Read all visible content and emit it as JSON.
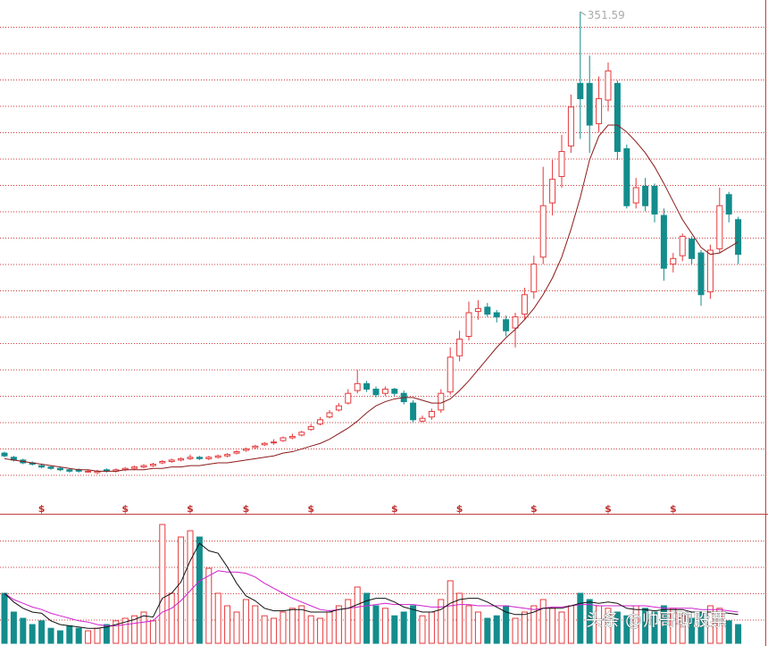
{
  "chart_data": {
    "type": "candlestick",
    "open": [
      34,
      31,
      29,
      27,
      25,
      24,
      23,
      22,
      22,
      21,
      20,
      22,
      21,
      22,
      23,
      24,
      25,
      27,
      28,
      29,
      30,
      31,
      30,
      31,
      32,
      34,
      36,
      38,
      40,
      42,
      43,
      45,
      47,
      51,
      55,
      60,
      65,
      70,
      79,
      84,
      80,
      77,
      80,
      77,
      70,
      57,
      60,
      65,
      78,
      104,
      118,
      136,
      139,
      135,
      130,
      124,
      134,
      150,
      175,
      214,
      233,
      255,
      300,
      300,
      271,
      288,
      300,
      253,
      214,
      226,
      226,
      205,
      170,
      176,
      188,
      178,
      150,
      181,
      220,
      202
    ],
    "high": [
      35,
      32,
      30,
      28,
      26,
      25,
      24,
      23,
      23,
      22,
      22,
      23,
      23,
      24,
      25,
      26,
      27,
      29,
      30,
      31,
      33,
      32,
      32,
      33,
      34,
      36,
      38,
      40,
      42,
      44,
      46,
      48,
      50,
      55,
      60,
      65,
      70,
      80,
      94,
      86,
      82,
      82,
      81,
      79,
      72,
      61,
      66,
      80,
      110,
      122,
      143,
      144,
      142,
      137,
      133,
      135,
      153,
      176,
      240,
      245,
      263,
      292,
      351.59,
      320,
      305,
      315,
      302,
      256,
      232,
      232,
      228,
      210,
      178,
      192,
      190,
      180,
      184,
      225,
      222,
      204
    ],
    "low": [
      31,
      28,
      26,
      25,
      23,
      22,
      21,
      20,
      20,
      20,
      19,
      20,
      20,
      21,
      22,
      23,
      24,
      26,
      27,
      28,
      29,
      29,
      29,
      30,
      31,
      33,
      35,
      37,
      39,
      40,
      42,
      44,
      46,
      50,
      54,
      59,
      64,
      69,
      77,
      78,
      74,
      75,
      75,
      69,
      56,
      56,
      58,
      63,
      76,
      100,
      115,
      130,
      132,
      128,
      118,
      110,
      130,
      145,
      170,
      205,
      225,
      250,
      260,
      250,
      265,
      280,
      245,
      210,
      210,
      208,
      200,
      158,
      164,
      172,
      170,
      140,
      145,
      178,
      200,
      170
    ],
    "close": [
      32,
      29,
      27,
      26,
      24,
      23,
      22,
      21,
      21,
      21,
      21,
      21,
      22,
      23,
      24,
      25,
      26,
      28,
      29,
      30,
      31,
      30,
      31,
      32,
      33,
      35,
      37,
      39,
      41,
      42,
      45,
      46,
      49,
      53,
      58,
      63,
      68,
      77,
      84,
      80,
      76,
      80,
      77,
      71,
      58,
      59,
      64,
      77,
      103,
      116,
      135,
      138,
      134,
      132,
      122,
      132,
      148,
      170,
      212,
      231,
      251,
      283,
      289,
      270,
      289,
      309,
      251,
      212,
      225,
      212,
      206,
      167,
      174,
      190,
      174,
      148,
      180,
      212,
      206,
      177
    ],
    "ma": [
      30,
      29,
      28,
      27,
      26,
      25,
      24,
      23,
      22,
      22,
      21,
      21,
      21,
      22,
      22,
      22,
      23,
      23,
      24,
      24,
      25,
      25,
      26,
      27,
      27,
      28,
      29,
      30,
      31,
      32,
      34,
      35,
      37,
      39,
      41,
      44,
      48,
      52,
      57,
      63,
      68,
      71,
      73,
      74,
      74,
      72,
      70,
      70,
      73,
      79,
      86,
      94,
      102,
      110,
      117,
      123,
      130,
      138,
      148,
      160,
      175,
      195,
      218,
      245,
      262,
      270,
      270,
      265,
      258,
      250,
      240,
      228,
      215,
      202,
      192,
      182,
      177,
      178,
      182,
      186
    ],
    "ylim": [
      0,
      360
    ],
    "volume": [
      40,
      25,
      20,
      15,
      18,
      12,
      10,
      14,
      12,
      10,
      12,
      15,
      18,
      20,
      22,
      25,
      18,
      95,
      40,
      85,
      90,
      85,
      60,
      40,
      30,
      25,
      35,
      30,
      22,
      20,
      25,
      28,
      30,
      22,
      20,
      25,
      30,
      35,
      45,
      40,
      30,
      28,
      22,
      25,
      30,
      22,
      25,
      35,
      50,
      40,
      30,
      25,
      20,
      22,
      30,
      20,
      25,
      30,
      35,
      28,
      25,
      30,
      40,
      35,
      30,
      28,
      25,
      22,
      30,
      28,
      25,
      30,
      28,
      22,
      20,
      25,
      30,
      28,
      18,
      15
    ],
    "volume_ma_short": [
      40,
      33,
      28,
      25,
      24,
      18,
      15,
      14,
      13,
      12,
      12,
      13,
      15,
      17,
      19,
      22,
      21,
      36,
      40,
      49,
      66,
      80,
      74,
      72,
      61,
      48,
      38,
      34,
      28,
      26,
      26,
      27,
      27,
      25,
      25,
      25,
      27,
      28,
      31,
      34,
      36,
      36,
      33,
      29,
      27,
      25,
      25,
      27,
      32,
      35,
      36,
      36,
      33,
      29,
      25,
      23,
      23,
      25,
      28,
      28,
      28,
      30,
      32,
      33,
      32,
      33,
      32,
      28,
      27,
      27,
      26,
      27,
      27,
      27,
      25,
      25,
      25,
      25,
      24,
      23
    ],
    "volume_ma_long": [
      40,
      35,
      32,
      29,
      27,
      24,
      22,
      20,
      18,
      17,
      15,
      14,
      14,
      15,
      16,
      17,
      18,
      25,
      28,
      34,
      42,
      50,
      54,
      58,
      57,
      57,
      56,
      53,
      48,
      44,
      40,
      36,
      33,
      30,
      27,
      26,
      27,
      28,
      29,
      30,
      31,
      32,
      31,
      31,
      31,
      30,
      29,
      29,
      30,
      31,
      31,
      30,
      30,
      30,
      30,
      29,
      28,
      27,
      28,
      29,
      29,
      30,
      31,
      31,
      30,
      30,
      30,
      30,
      30,
      30,
      29,
      28,
      28,
      28,
      28,
      27,
      27,
      27,
      26,
      25
    ],
    "volume_ylim": [
      0,
      100
    ],
    "event_labels": [
      null,
      null,
      null,
      null,
      "$",
      null,
      null,
      null,
      null,
      null,
      null,
      null,
      null,
      "$",
      null,
      null,
      null,
      null,
      null,
      null,
      "$",
      null,
      null,
      null,
      null,
      null,
      "$",
      null,
      null,
      null,
      null,
      null,
      null,
      "$",
      null,
      null,
      null,
      null,
      null,
      null,
      null,
      null,
      "$",
      null,
      null,
      null,
      null,
      null,
      null,
      "$",
      null,
      null,
      null,
      null,
      null,
      null,
      null,
      "$",
      null,
      null,
      null,
      null,
      null,
      null,
      null,
      "$",
      null,
      null,
      null,
      null,
      null,
      null,
      "$",
      null,
      null,
      null,
      null,
      null,
      null,
      null
    ],
    "up_color": "#e5393b",
    "down_color": "#148c8c",
    "ma_color": "#8b1a1a",
    "volume_ma_short_color": "#111111",
    "volume_ma_long_color": "#d020d0",
    "grid": true
  },
  "watermark": "头条 @帅哥聊股票"
}
